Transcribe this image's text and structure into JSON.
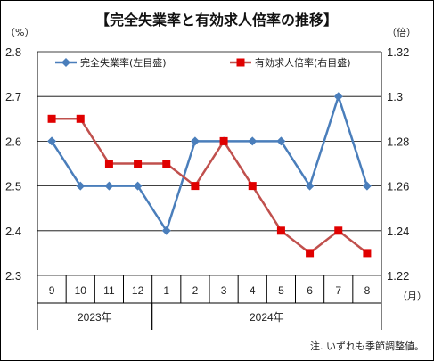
{
  "chart_data": {
    "type": "line",
    "title": "【完全失業率と有効求人倍率の推移】",
    "left_unit": "（%）",
    "right_unit": "（倍）",
    "month_unit": "（月）",
    "note": "注. いずれも季節調整値。",
    "categories": [
      "9",
      "10",
      "11",
      "12",
      "1",
      "2",
      "3",
      "4",
      "5",
      "6",
      "7",
      "8"
    ],
    "year_groups": [
      {
        "label": "2023年",
        "start": 0,
        "end": 3
      },
      {
        "label": "2024年",
        "start": 4,
        "end": 11
      }
    ],
    "left_axis": {
      "min": 2.3,
      "max": 2.8,
      "ticks": [
        "2.3",
        "2.4",
        "2.5",
        "2.6",
        "2.7",
        "2.8"
      ]
    },
    "right_axis": {
      "min": 1.22,
      "max": 1.32,
      "ticks": [
        "1.22",
        "1.24",
        "1.26",
        "1.28",
        "1.3",
        "1.32"
      ]
    },
    "grid": true,
    "legend_position": "top",
    "series": [
      {
        "name": "完全失業率(左目盛)",
        "axis": "left",
        "color": "#4a7ebb",
        "marker": "diamond",
        "values": [
          2.6,
          2.5,
          2.5,
          2.5,
          2.4,
          2.6,
          2.6,
          2.6,
          2.6,
          2.5,
          2.7,
          2.5
        ]
      },
      {
        "name": "有効求人倍率(右目盛)",
        "axis": "right",
        "color": "#c0504d",
        "marker": "square",
        "values": [
          1.29,
          1.29,
          1.27,
          1.27,
          1.27,
          1.26,
          1.28,
          1.26,
          1.24,
          1.23,
          1.24,
          1.23
        ]
      }
    ]
  }
}
